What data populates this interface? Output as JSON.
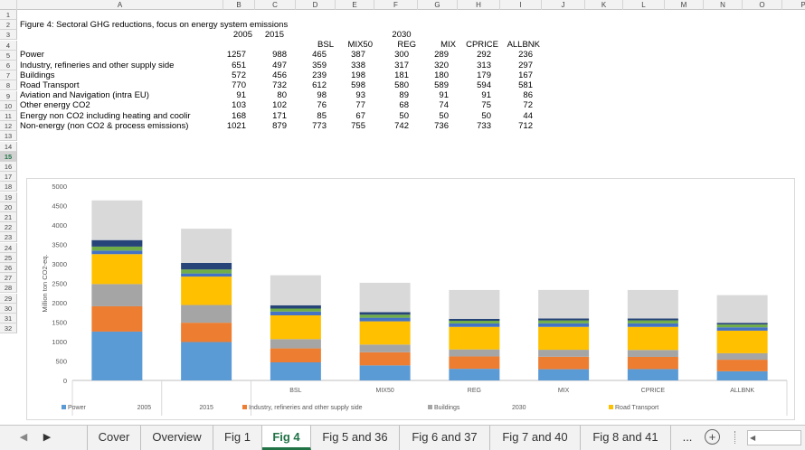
{
  "sheet": {
    "columns": [
      "A",
      "B",
      "C",
      "D",
      "E",
      "F",
      "G",
      "H",
      "I",
      "J",
      "K",
      "L",
      "M",
      "N",
      "O",
      "P"
    ],
    "rows": [
      "1",
      "2",
      "3",
      "4",
      "5",
      "6",
      "7",
      "8",
      "9",
      "10",
      "11",
      "12",
      "13",
      "14",
      "15",
      "16",
      "17",
      "18",
      "19",
      "20",
      "21",
      "22",
      "23",
      "24",
      "25",
      "26",
      "27",
      "28",
      "29",
      "30",
      "31",
      "32"
    ],
    "selected_row": "15",
    "title": "Figure 4: Sectoral GHG reductions, focus on energy system emissions",
    "year_headers": [
      "2005",
      "2015",
      "2030"
    ],
    "scenario_headers": [
      "BSL",
      "MIX50",
      "REG",
      "MIX",
      "CPRICE",
      "ALLBNK"
    ],
    "table": [
      {
        "label": "Power",
        "values": [
          "1257",
          "988",
          "465",
          "387",
          "300",
          "289",
          "292",
          "236"
        ]
      },
      {
        "label": "Industry, refineries and other supply side",
        "values": [
          "651",
          "497",
          "359",
          "338",
          "317",
          "320",
          "313",
          "297"
        ]
      },
      {
        "label": "Buildings",
        "values": [
          "572",
          "456",
          "239",
          "198",
          "181",
          "180",
          "179",
          "167"
        ]
      },
      {
        "label": "Road Transport",
        "values": [
          "770",
          "732",
          "612",
          "598",
          "580",
          "589",
          "594",
          "581"
        ]
      },
      {
        "label": "Aviation and Navigation (intra EU)",
        "values": [
          "91",
          "80",
          "98",
          "93",
          "89",
          "91",
          "91",
          "86"
        ]
      },
      {
        "label": "Other energy CO2",
        "values": [
          "103",
          "102",
          "76",
          "77",
          "68",
          "74",
          "75",
          "72"
        ]
      },
      {
        "label": "Energy non CO2 including heating and coolir",
        "values": [
          "168",
          "171",
          "85",
          "67",
          "50",
          "50",
          "50",
          "44"
        ]
      },
      {
        "label": "Non-energy (non CO2 & process emissions)",
        "values": [
          "1021",
          "879",
          "773",
          "755",
          "742",
          "736",
          "733",
          "712"
        ]
      }
    ]
  },
  "chart_data": {
    "type": "bar",
    "stacked": true,
    "categories": [
      "2005",
      "2015",
      "BSL",
      "MIX50",
      "REG",
      "MIX",
      "CPRICE",
      "ALLBNK"
    ],
    "axis_group_labels": [
      "2005",
      "2015",
      "2030"
    ],
    "ylabel": "Million ton CO2-eq.",
    "ylim": [
      0,
      5000
    ],
    "yticks": [
      "0",
      "500",
      "1000",
      "1500",
      "2000",
      "2500",
      "3000",
      "3500",
      "4000",
      "4500",
      "5000"
    ],
    "grid": false,
    "legend_position": "bottom",
    "series": [
      {
        "name": "Power",
        "color": "#5b9bd5",
        "values": [
          1257,
          988,
          465,
          387,
          300,
          289,
          292,
          236
        ]
      },
      {
        "name": "Industry, refineries and other supply side",
        "color": "#ed7d31",
        "values": [
          651,
          497,
          359,
          338,
          317,
          320,
          313,
          297
        ]
      },
      {
        "name": "Buildings",
        "color": "#a5a5a5",
        "values": [
          572,
          456,
          239,
          198,
          181,
          180,
          179,
          167
        ]
      },
      {
        "name": "Road Transport",
        "color": "#ffc000",
        "values": [
          770,
          732,
          612,
          598,
          580,
          589,
          594,
          581
        ]
      },
      {
        "color": "#4472c4",
        "values": [
          91,
          80,
          98,
          93,
          89,
          91,
          91,
          86
        ]
      },
      {
        "color": "#70ad47",
        "values": [
          103,
          102,
          76,
          77,
          68,
          74,
          75,
          72
        ]
      },
      {
        "color": "#264478",
        "values": [
          168,
          171,
          85,
          67,
          50,
          50,
          50,
          44
        ]
      },
      {
        "color": "#d9d9d9",
        "values": [
          1021,
          879,
          773,
          755,
          742,
          736,
          733,
          712
        ]
      }
    ]
  },
  "tabs": {
    "items": [
      "Cover",
      "Overview",
      "Fig 1",
      "Fig 4",
      "Fig 5 and 36",
      "Fig 6 and 37",
      "Fig 7 and 40",
      "Fig 8 and 41"
    ],
    "active": "Fig 4",
    "more": "...",
    "add": "+"
  }
}
